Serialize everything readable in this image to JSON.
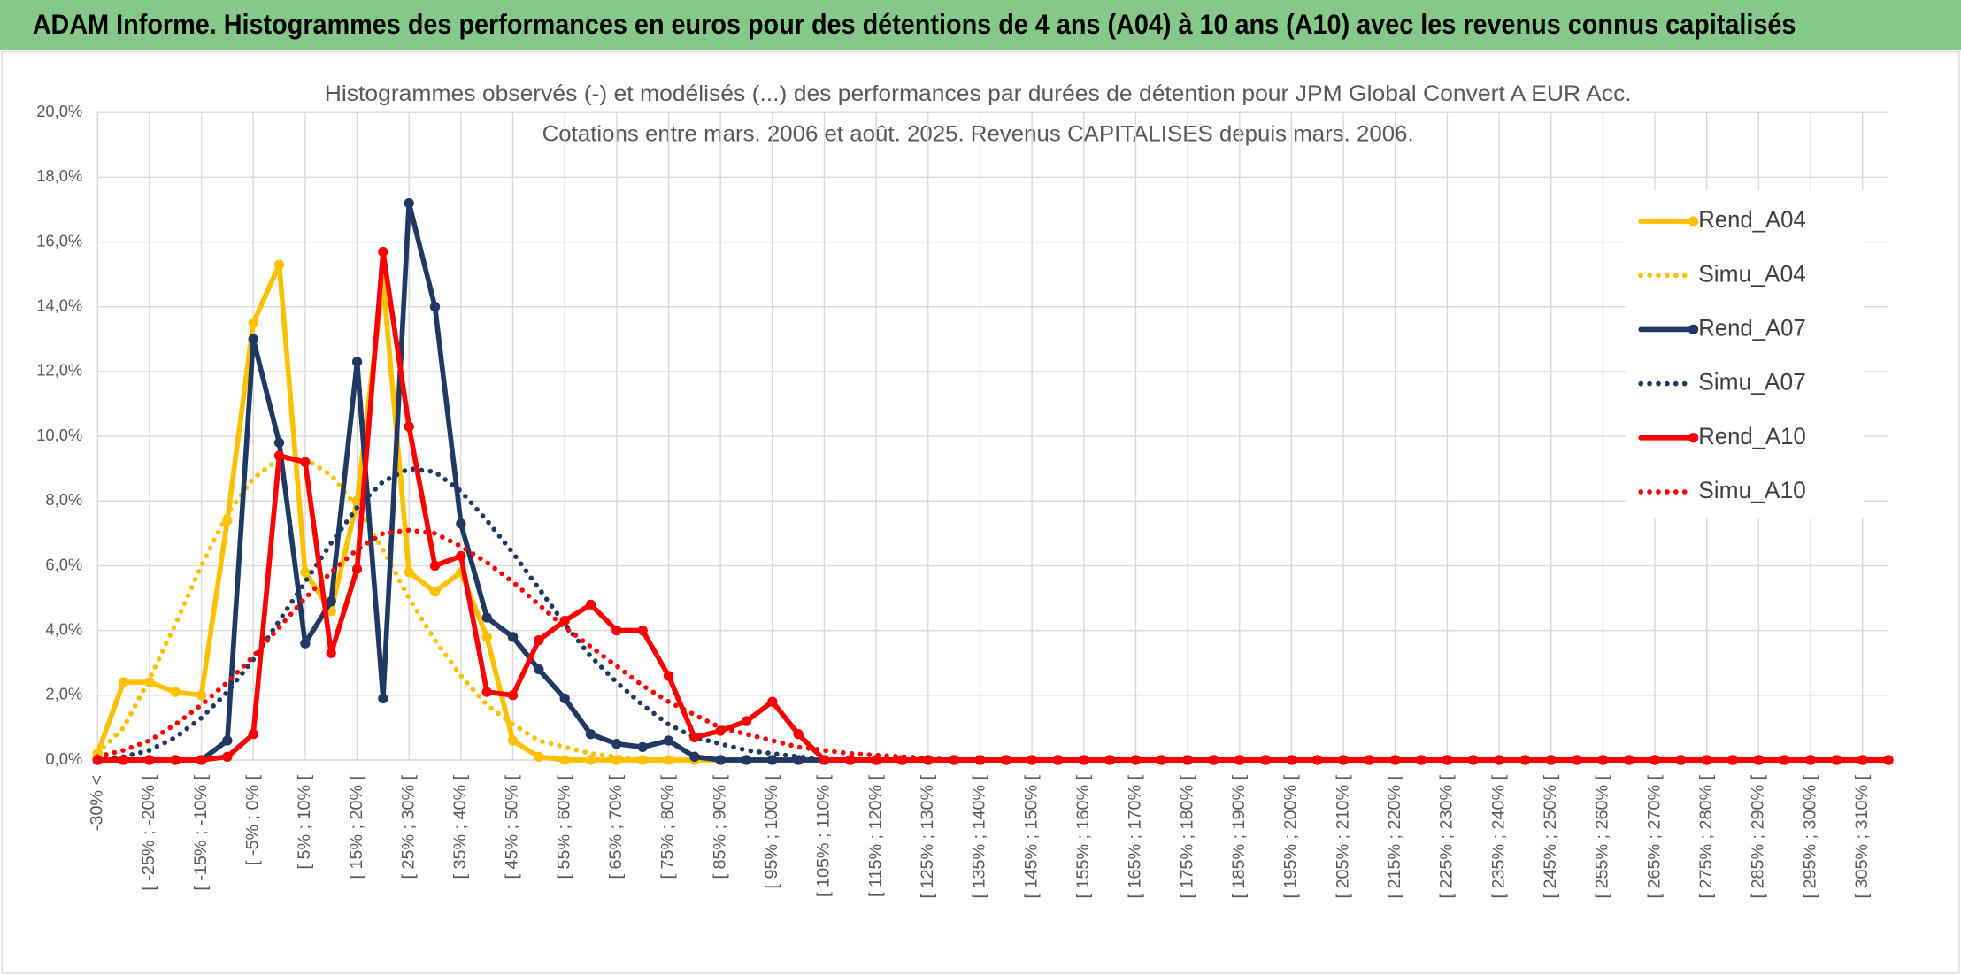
{
  "chart_data": {
    "type": "line",
    "title": "ADAM Informe. Histogrammes des performances en euros pour des détentions de 4 ans (A04) à 10 ans (A10) avec les revenus connus capitalisés",
    "subtitle": [
      "Histogrammes observés (-) et modélisés (...) des performances par durées de détention pour JPM Global Convert A EUR Acc.",
      "Cotations entre mars. 2006 et août. 2025. Revenus CAPITALISES depuis mars. 2006."
    ],
    "categories": [
      "-30% <",
      null,
      "[ -25% ; -20% [",
      null,
      "[ -15% ; -10% [",
      null,
      "[ -5% ; 0% [",
      null,
      "[ 5% ; 10% [",
      null,
      "[ 15% ; 20% [",
      null,
      "[ 25% ; 30% [",
      null,
      "[ 35% ; 40% [",
      null,
      "[ 45% ; 50% [",
      null,
      "[ 55% ; 60% [",
      null,
      "[ 65% ; 70% [",
      null,
      "[ 75% ; 80% [",
      null,
      "[ 85% ; 90% [",
      null,
      "[ 95% ; 100% [",
      null,
      "[ 105% ; 110% [",
      null,
      "[ 115% ; 120% [",
      null,
      "[ 125% ; 130% [",
      null,
      "[ 135% ; 140% [",
      null,
      "[ 145% ; 150% [",
      null,
      "[ 155% ; 160% [",
      null,
      "[ 165% ; 170% [",
      null,
      "[ 175% ; 180% [",
      null,
      "[ 185% ; 190% [",
      null,
      "[ 195% ; 200% [",
      null,
      "[ 205% ; 210% [",
      null,
      "[ 215% ; 220% [",
      null,
      "[ 225% ; 230% [",
      null,
      "[ 235% ; 240% [",
      null,
      "[ 245% ; 250% [",
      null,
      "[ 255% ; 260% [",
      null,
      "[ 265% ; 270% [",
      null,
      "[ 275% ; 280% [",
      null,
      "[ 285% ; 290% [",
      null,
      "[ 295% ; 300% [",
      null,
      "[ 305% ; 310% [",
      null
    ],
    "series": [
      {
        "name": "Rend_A04",
        "color": "#ffc000",
        "line_style": "solid",
        "markers": true,
        "values": [
          0.2,
          2.4,
          2.4,
          2.1,
          2.0,
          7.4,
          13.5,
          15.3,
          5.8,
          4.6,
          8.0,
          14.8,
          5.8,
          5.2,
          5.8,
          3.8,
          0.6,
          0.1,
          0,
          0,
          0,
          0,
          0,
          0,
          0,
          0,
          0,
          0,
          0,
          0,
          0,
          0,
          0,
          0,
          0,
          0,
          0,
          0,
          0,
          0,
          0,
          0,
          0,
          0,
          0,
          0,
          0,
          0,
          0,
          0,
          0,
          0,
          0,
          0,
          0,
          0,
          0,
          0,
          0,
          0,
          0,
          0,
          0,
          0,
          0,
          0,
          0,
          0,
          0,
          0
        ]
      },
      {
        "name": "Simu_A04",
        "color": "#ffc000",
        "line_style": "dotted",
        "markers": false,
        "values": [
          0.2,
          1.0,
          2.5,
          4.2,
          6.0,
          7.6,
          8.7,
          9.3,
          9.3,
          8.8,
          7.8,
          6.5,
          5.0,
          3.7,
          2.6,
          1.7,
          1.1,
          0.6,
          0.4,
          0.2,
          0.1,
          0,
          0,
          0,
          0,
          0,
          0,
          0,
          0,
          0,
          0,
          0,
          0,
          0,
          0,
          0,
          0,
          0,
          0,
          0,
          0,
          0,
          0,
          0,
          0,
          0,
          0,
          0,
          0,
          0,
          0,
          0,
          0,
          0,
          0,
          0,
          0,
          0,
          0,
          0,
          0,
          0,
          0,
          0,
          0,
          0,
          0,
          0,
          0,
          0
        ]
      },
      {
        "name": "Rend_A07",
        "color": "#1f3864",
        "line_style": "solid",
        "markers": true,
        "values": [
          0,
          0,
          0,
          0,
          0,
          0.6,
          13.0,
          9.8,
          3.6,
          4.9,
          12.3,
          1.9,
          17.2,
          14.0,
          7.3,
          4.4,
          3.8,
          2.8,
          1.9,
          0.8,
          0.5,
          0.4,
          0.6,
          0.1,
          0,
          0,
          0,
          0,
          0,
          0,
          0,
          0,
          0,
          0,
          0,
          0,
          0,
          0,
          0,
          0,
          0,
          0,
          0,
          0,
          0,
          0,
          0,
          0,
          0,
          0,
          0,
          0,
          0,
          0,
          0,
          0,
          0,
          0,
          0,
          0,
          0,
          0,
          0,
          0,
          0,
          0,
          0,
          0,
          0,
          0
        ]
      },
      {
        "name": "Simu_A07",
        "color": "#1f3864",
        "line_style": "dotted",
        "markers": false,
        "values": [
          0,
          0.1,
          0.3,
          0.7,
          1.3,
          2.1,
          3.1,
          4.3,
          5.5,
          6.7,
          7.8,
          8.6,
          9.0,
          8.9,
          8.3,
          7.4,
          6.4,
          5.3,
          4.2,
          3.2,
          2.4,
          1.7,
          1.1,
          0.7,
          0.5,
          0.3,
          0.2,
          0.1,
          0,
          0,
          0,
          0,
          0,
          0,
          0,
          0,
          0,
          0,
          0,
          0,
          0,
          0,
          0,
          0,
          0,
          0,
          0,
          0,
          0,
          0,
          0,
          0,
          0,
          0,
          0,
          0,
          0,
          0,
          0,
          0,
          0,
          0,
          0,
          0,
          0,
          0,
          0,
          0,
          0,
          0
        ]
      },
      {
        "name": "Rend_A10",
        "color": "#ff0000",
        "line_style": "solid",
        "markers": true,
        "values": [
          0,
          0,
          0,
          0,
          0,
          0.1,
          0.8,
          9.4,
          9.2,
          3.3,
          5.9,
          15.7,
          10.3,
          6.0,
          6.3,
          2.1,
          2.0,
          3.7,
          4.3,
          4.8,
          4.0,
          4.0,
          2.6,
          0.7,
          0.9,
          1.2,
          1.8,
          0.8,
          0,
          0,
          0,
          0,
          0,
          0,
          0,
          0,
          0,
          0,
          0,
          0,
          0,
          0,
          0,
          0,
          0,
          0,
          0,
          0,
          0,
          0,
          0,
          0,
          0,
          0,
          0,
          0,
          0,
          0,
          0,
          0,
          0,
          0,
          0,
          0,
          0,
          0,
          0,
          0,
          0,
          0
        ]
      },
      {
        "name": "Simu_A10",
        "color": "#ff0000",
        "line_style": "dotted",
        "markers": false,
        "values": [
          0.1,
          0.3,
          0.6,
          1.1,
          1.7,
          2.4,
          3.2,
          4.1,
          5.0,
          5.8,
          6.5,
          7.0,
          7.1,
          7.0,
          6.6,
          6.1,
          5.5,
          4.8,
          4.1,
          3.5,
          2.9,
          2.3,
          1.8,
          1.4,
          1.0,
          0.8,
          0.6,
          0.4,
          0.3,
          0.2,
          0.15,
          0.1,
          0.05,
          0,
          0,
          0,
          0,
          0,
          0,
          0,
          0,
          0,
          0,
          0,
          0,
          0,
          0,
          0,
          0,
          0,
          0,
          0,
          0,
          0,
          0,
          0,
          0,
          0,
          0,
          0,
          0,
          0,
          0,
          0,
          0,
          0,
          0,
          0,
          0,
          0
        ]
      }
    ],
    "ylim": [
      0,
      20
    ],
    "yticks": [
      {
        "value": 0,
        "label": "0,0%"
      },
      {
        "value": 2,
        "label": "2,0%"
      },
      {
        "value": 4,
        "label": "4,0%"
      },
      {
        "value": 6,
        "label": "6,0%"
      },
      {
        "value": 8,
        "label": "8,0%"
      },
      {
        "value": 10,
        "label": "10,0%"
      },
      {
        "value": 12,
        "label": "12,0%"
      },
      {
        "value": 14,
        "label": "14,0%"
      },
      {
        "value": 16,
        "label": "16,0%"
      },
      {
        "value": 18,
        "label": "18,0%"
      },
      {
        "value": 20,
        "label": "20,0%"
      }
    ],
    "grid": true,
    "legend": "right"
  }
}
